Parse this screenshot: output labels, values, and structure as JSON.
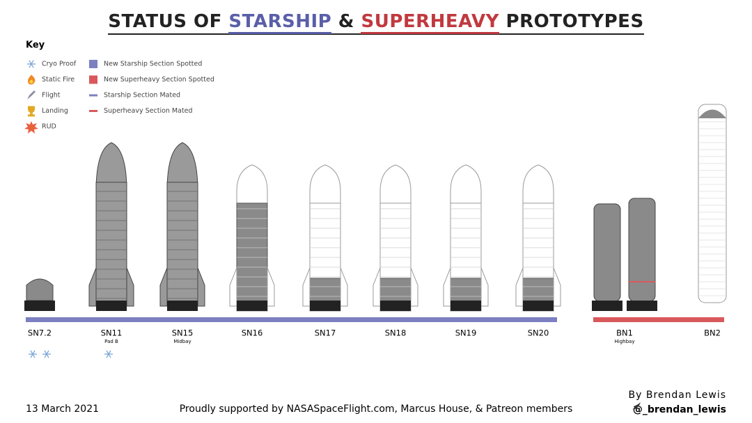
{
  "title": {
    "part1": "STATUS OF ",
    "starship": "STARSHIP",
    "amp": " & ",
    "superheavy": "SUPERHEAVY",
    "part2": " PROTOTYPES"
  },
  "key": {
    "title": "Key",
    "icons": [
      "Cryo Proof",
      "Static Fire",
      "Flight",
      "Landing",
      "RUD"
    ],
    "sections": [
      "New Starship Section Spotted",
      "New Superheavy Section Spotted",
      "Starship Section Mated",
      "Superheavy Section Mated"
    ]
  },
  "prototypes": [
    {
      "name": "SN7.2"
    },
    {
      "name": "SN11",
      "location": "Pad B"
    },
    {
      "name": "SN15",
      "location": "Midbay"
    },
    {
      "name": "SN16"
    },
    {
      "name": "SN17"
    },
    {
      "name": "SN18"
    },
    {
      "name": "SN19"
    },
    {
      "name": "SN20"
    },
    {
      "name": "BN1",
      "location": "Highbay"
    },
    {
      "name": "BN2"
    }
  ],
  "footer": {
    "date": "13 March 2021",
    "support": "Proudly supported by NASASpaceFlight.com, Marcus House, & Patreon members",
    "byline": "By Brendan Lewis",
    "handle": "@_brendan_lewis"
  }
}
